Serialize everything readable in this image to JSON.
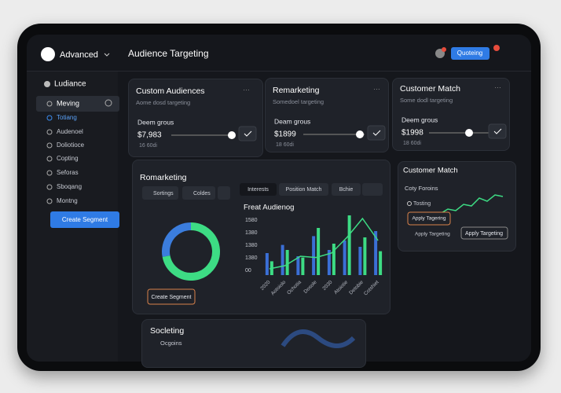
{
  "header": {
    "brand": "Advanced",
    "title": "Audience Targeting",
    "button": "Quoteing"
  },
  "sidebar": {
    "title": "Ludiance",
    "items": [
      "Meving",
      "Totiang",
      "Audenoel",
      "Doliotioce",
      "Copting",
      "Seforas",
      "Sboqang",
      "Montng"
    ],
    "button": "Create Segment"
  },
  "cards": [
    {
      "title": "Custom Audiences",
      "subtitle": "Aome dosd targeting",
      "label": "Deem grous",
      "amount": "$7,983",
      "note": "16 60di"
    },
    {
      "title": "Remarketing",
      "subtitle": "Somedoel targeting",
      "label": "Deam grous",
      "amount": "$1899",
      "note": "18 60di"
    },
    {
      "title": "Customer Match",
      "subtitle": "Some dodl targeting",
      "label": "Deem grous",
      "amount": "$1998",
      "note": "18 60di"
    }
  ],
  "remarketing": {
    "title": "Romarketing",
    "buttons": [
      "Sortings",
      "Coldes"
    ],
    "button": "Create Segment",
    "donut": [
      {
        "value": 72,
        "color": "#3ddc84"
      },
      {
        "value": 28,
        "color": "#3b7ddd"
      }
    ],
    "tabs": [
      "Interests",
      "Position Match",
      "Bchie"
    ],
    "chart": {
      "title": "Freat Audienog",
      "yticks": [
        "1580",
        "1380",
        "1380",
        "1380",
        "00"
      ],
      "categories": [
        "2020",
        "Aotoiolo",
        "Ochotia",
        "Dosole",
        "2030",
        "Atoiotie",
        "Detobie",
        "Cotshiet"
      ],
      "ylim": [
        0,
        100
      ],
      "blue": [
        35,
        48,
        30,
        62,
        40,
        55,
        45,
        70
      ],
      "green": [
        22,
        40,
        28,
        75,
        50,
        95,
        60,
        38
      ],
      "line": [
        10,
        15,
        30,
        28,
        35,
        60,
        90,
        55
      ]
    }
  },
  "match": {
    "title": "Customer Match",
    "label": "Coty Foroins",
    "option": "Tosting",
    "buttons": [
      "Apply Tagering",
      "Apply Targeting",
      "Apply Targeting"
    ],
    "line": [
      20,
      35,
      30,
      50,
      45,
      70,
      60,
      80,
      75
    ],
    "ylim": [
      0,
      100
    ]
  },
  "bottom": {
    "title": "Socleting",
    "item": "Ocgoins"
  }
}
